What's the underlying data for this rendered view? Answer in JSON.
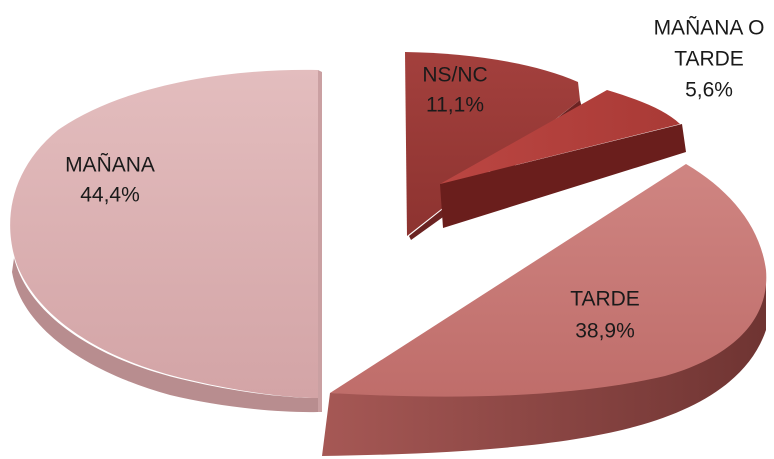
{
  "chart_data": {
    "type": "pie",
    "title": "",
    "style": "3d-exploded",
    "legend": "none",
    "slices": [
      {
        "key": "manana",
        "label_lines": [
          "MAÑANA"
        ],
        "value_label": "44,4%",
        "value": 44.4,
        "color": "#dbb1b2",
        "side_color": "#b98f91"
      },
      {
        "key": "nsnc",
        "label_lines": [
          "NS/NC"
        ],
        "value_label": "11,1%",
        "value": 11.1,
        "color": "#9a3a37",
        "side_color": "#6e2423"
      },
      {
        "key": "manana-o-tarde",
        "label_lines": [
          "MAÑANA O",
          "TARDE"
        ],
        "value_label": "5,6%",
        "value": 5.6,
        "color": "#b5413d",
        "side_color": "#6a1e1c"
      },
      {
        "key": "tarde",
        "label_lines": [
          "TARDE"
        ],
        "value_label": "38,9%",
        "value": 38.9,
        "color": "#c97a77",
        "side_color": "#8e4947"
      }
    ]
  }
}
